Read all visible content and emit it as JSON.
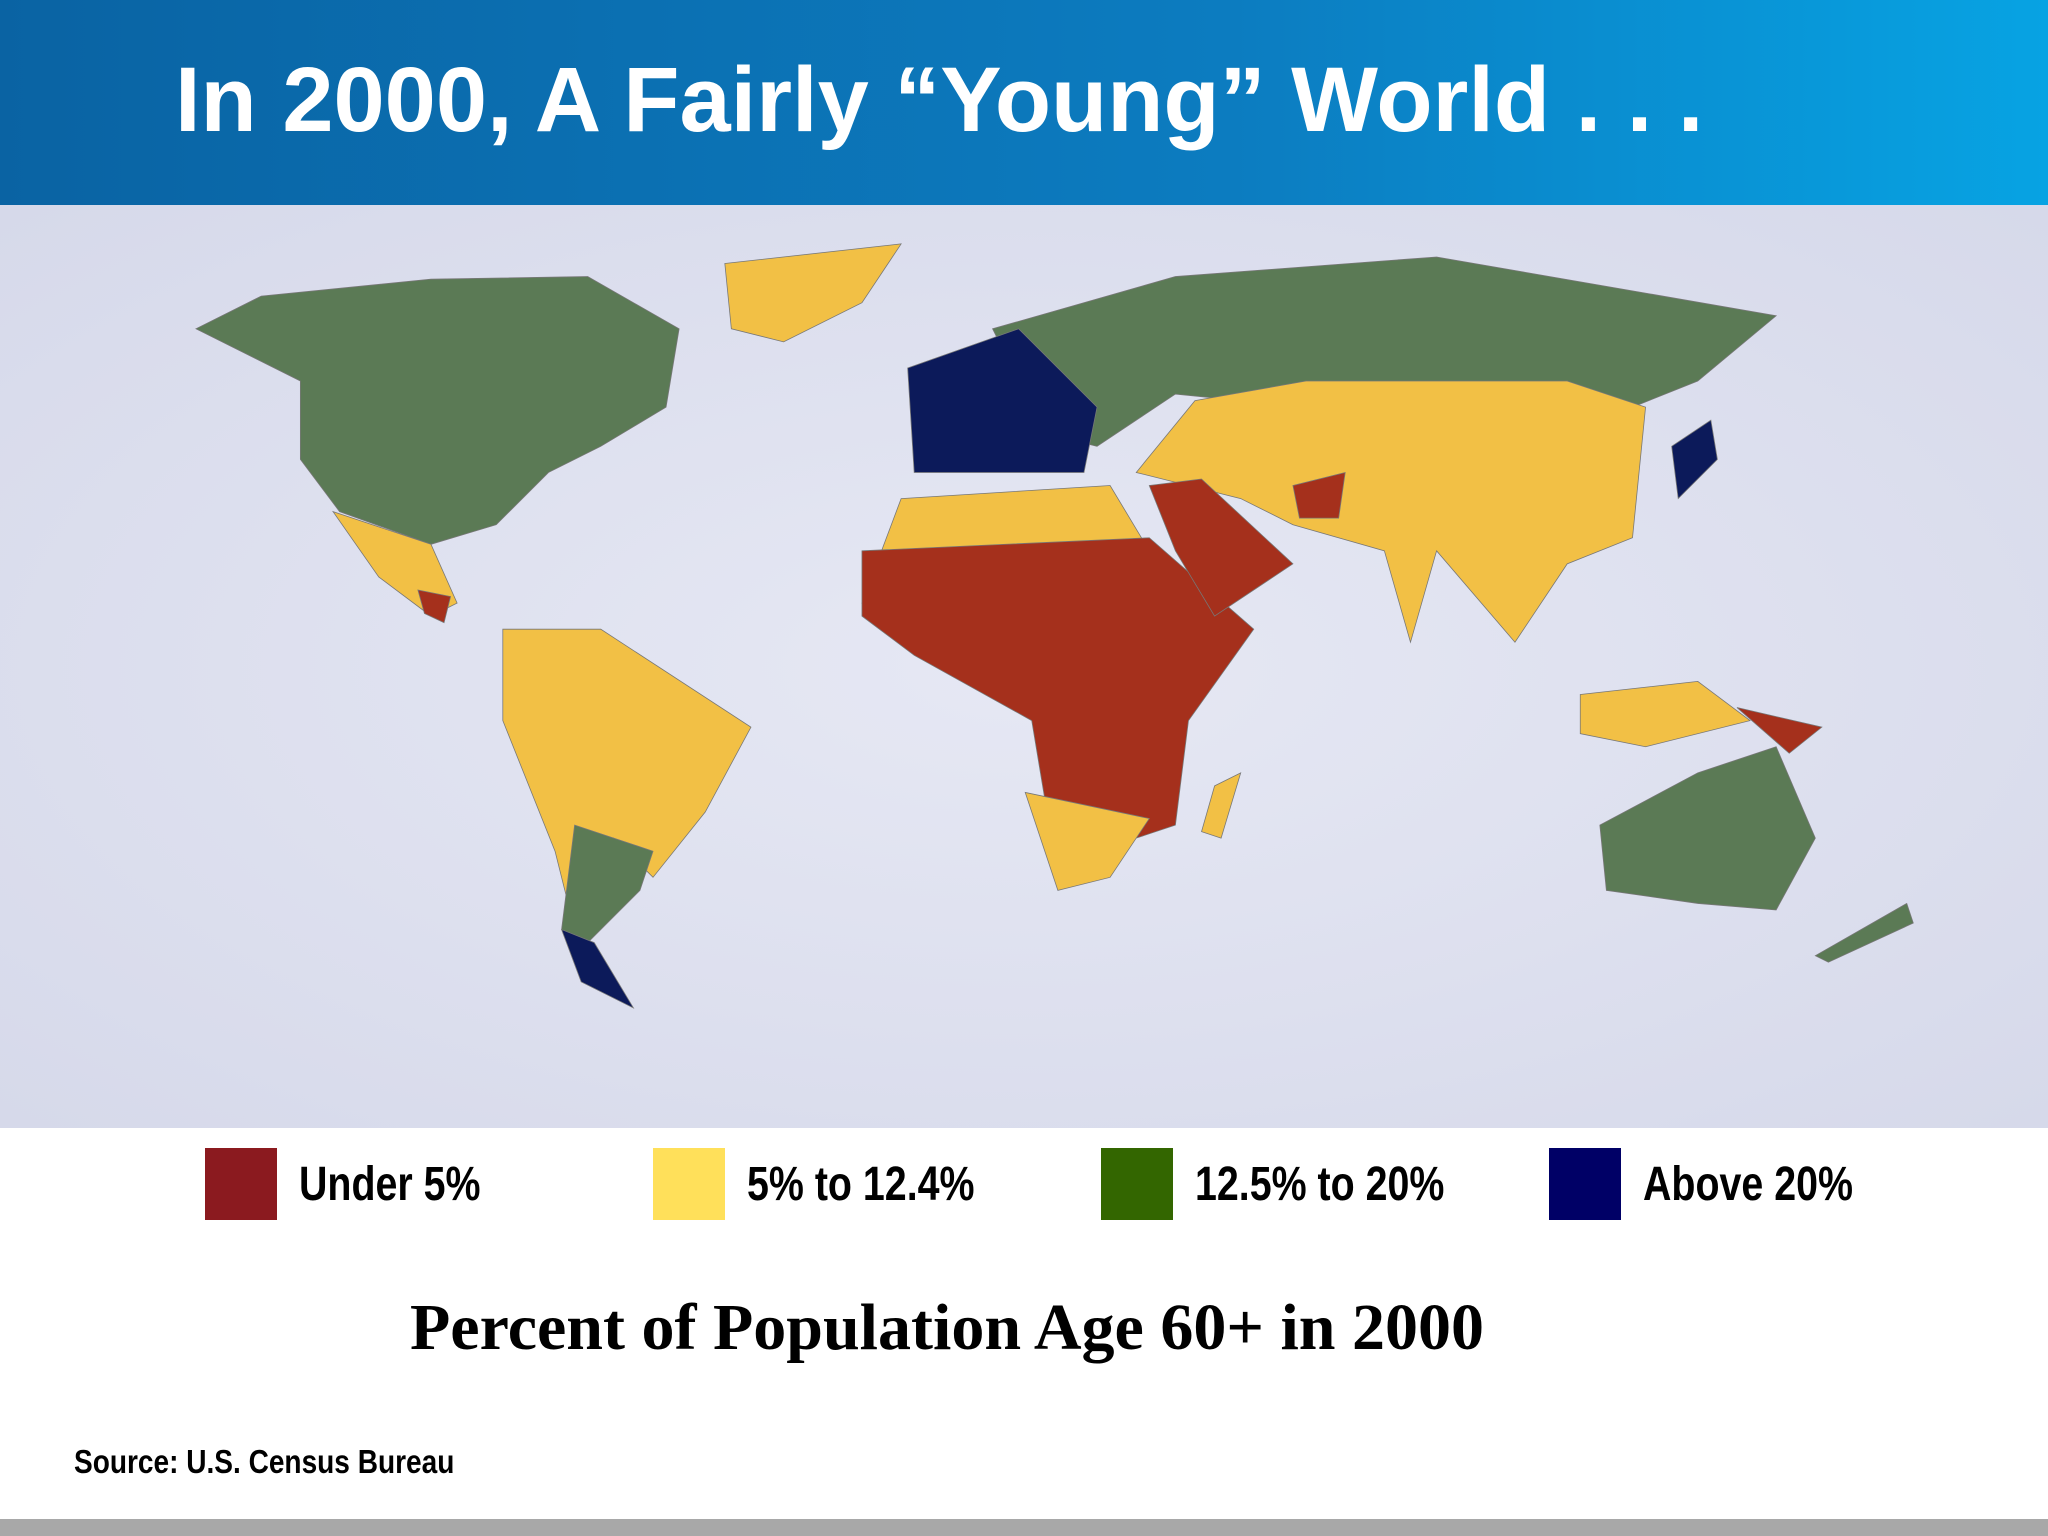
{
  "header": {
    "title": "In 2000, A Fairly “Young” World . . ."
  },
  "legend": {
    "items": [
      {
        "label": "Under 5%",
        "color": "#8b1a1f"
      },
      {
        "label": "5% to 12.4%",
        "color": "#ffe05a"
      },
      {
        "label": "12.5% to 20%",
        "color": "#336600"
      },
      {
        "label": "Above 20%",
        "color": "#000066"
      }
    ]
  },
  "caption": "Percent of Population Age 60+ in 2000",
  "source": "Source: U.S. Census Bureau"
}
